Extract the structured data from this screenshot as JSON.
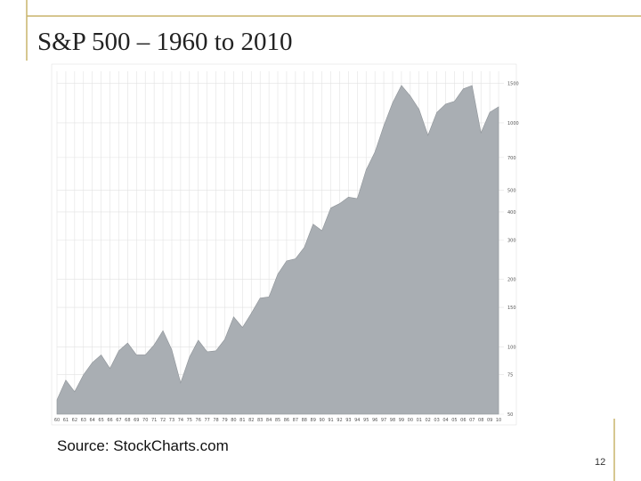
{
  "slide": {
    "title": "S&P 500 – 1960 to 2010",
    "source": "Source: StockCharts.com",
    "page_number": "12"
  },
  "chart_data": {
    "type": "area",
    "color": "#a9aeb3",
    "log_scale": true,
    "grid": true,
    "x": [
      1960,
      1961,
      1962,
      1963,
      1964,
      1965,
      1966,
      1967,
      1968,
      1969,
      1970,
      1971,
      1972,
      1973,
      1974,
      1975,
      1976,
      1977,
      1978,
      1979,
      1980,
      1981,
      1982,
      1983,
      1984,
      1985,
      1986,
      1987,
      1988,
      1989,
      1990,
      1991,
      1992,
      1993,
      1994,
      1995,
      1996,
      1997,
      1998,
      1999,
      2000,
      2001,
      2002,
      2003,
      2004,
      2005,
      2006,
      2007,
      2008,
      2009,
      2010
    ],
    "values": [
      58,
      71,
      63,
      75,
      85,
      92,
      80,
      96,
      104,
      92,
      92,
      102,
      118,
      97,
      69,
      90,
      107,
      95,
      96,
      108,
      136,
      122,
      141,
      165,
      167,
      211,
      242,
      247,
      278,
      353,
      330,
      417,
      436,
      466,
      459,
      616,
      741,
      970,
      1229,
      1469,
      1320,
      1148,
      880,
      1112,
      1212,
      1248,
      1418,
      1468,
      903,
      1115,
      1180
    ],
    "xlim": [
      1960,
      2010.6
    ],
    "ylim": [
      50,
      1700
    ],
    "xticks": [
      {
        "value": 1960,
        "label": "60"
      },
      {
        "value": 1961,
        "label": "61"
      },
      {
        "value": 1962,
        "label": "62"
      },
      {
        "value": 1963,
        "label": "63"
      },
      {
        "value": 1964,
        "label": "64"
      },
      {
        "value": 1965,
        "label": "65"
      },
      {
        "value": 1966,
        "label": "66"
      },
      {
        "value": 1967,
        "label": "67"
      },
      {
        "value": 1968,
        "label": "68"
      },
      {
        "value": 1969,
        "label": "69"
      },
      {
        "value": 1970,
        "label": "70"
      },
      {
        "value": 1971,
        "label": "71"
      },
      {
        "value": 1972,
        "label": "72"
      },
      {
        "value": 1973,
        "label": "73"
      },
      {
        "value": 1974,
        "label": "74"
      },
      {
        "value": 1975,
        "label": "75"
      },
      {
        "value": 1976,
        "label": "76"
      },
      {
        "value": 1977,
        "label": "77"
      },
      {
        "value": 1978,
        "label": "78"
      },
      {
        "value": 1979,
        "label": "79"
      },
      {
        "value": 1980,
        "label": "80"
      },
      {
        "value": 1981,
        "label": "81"
      },
      {
        "value": 1982,
        "label": "82"
      },
      {
        "value": 1983,
        "label": "83"
      },
      {
        "value": 1984,
        "label": "84"
      },
      {
        "value": 1985,
        "label": "85"
      },
      {
        "value": 1986,
        "label": "86"
      },
      {
        "value": 1987,
        "label": "87"
      },
      {
        "value": 1988,
        "label": "88"
      },
      {
        "value": 1989,
        "label": "89"
      },
      {
        "value": 1990,
        "label": "90"
      },
      {
        "value": 1991,
        "label": "91"
      },
      {
        "value": 1992,
        "label": "92"
      },
      {
        "value": 1993,
        "label": "93"
      },
      {
        "value": 1994,
        "label": "94"
      },
      {
        "value": 1995,
        "label": "95"
      },
      {
        "value": 1996,
        "label": "96"
      },
      {
        "value": 1997,
        "label": "97"
      },
      {
        "value": 1998,
        "label": "98"
      },
      {
        "value": 1999,
        "label": "99"
      },
      {
        "value": 2000,
        "label": "00"
      },
      {
        "value": 2001,
        "label": "01"
      },
      {
        "value": 2002,
        "label": "02"
      },
      {
        "value": 2003,
        "label": "03"
      },
      {
        "value": 2004,
        "label": "04"
      },
      {
        "value": 2005,
        "label": "05"
      },
      {
        "value": 2006,
        "label": "06"
      },
      {
        "value": 2007,
        "label": "07"
      },
      {
        "value": 2008,
        "label": "08"
      },
      {
        "value": 2009,
        "label": "09"
      },
      {
        "value": 2010,
        "label": "10"
      }
    ],
    "yticks": [
      50,
      75,
      100,
      150,
      200,
      300,
      400,
      500,
      700,
      1000,
      1500
    ]
  }
}
